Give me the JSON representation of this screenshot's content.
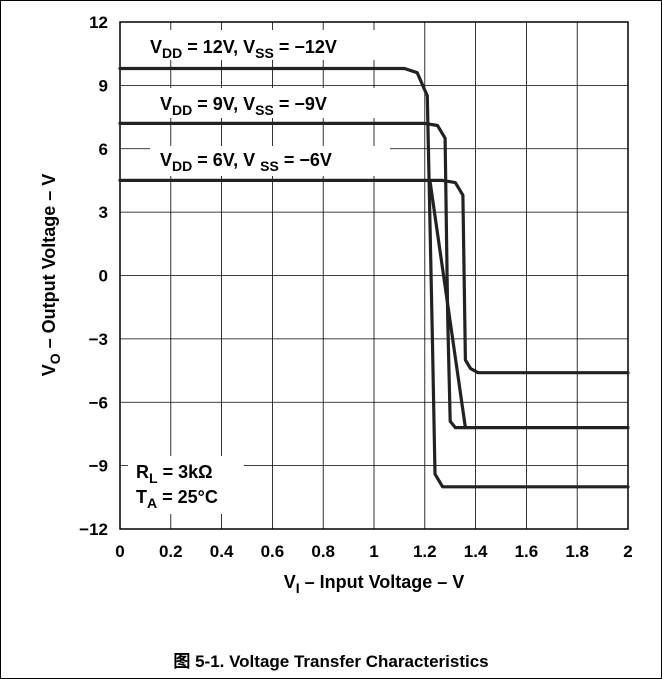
{
  "chart_data": {
    "type": "line",
    "title": "",
    "caption": "图 5-1. Voltage Transfer Characteristics",
    "xlabel": {
      "main": "V",
      "sub": "I",
      "rest": " – Input Voltage – V"
    },
    "ylabel": {
      "main": "V",
      "sub": "O",
      "rest": " – Output Voltage – V"
    },
    "xlim": [
      0,
      2
    ],
    "ylim": [
      -12,
      12
    ],
    "xticks": [
      0,
      0.2,
      0.4,
      0.6,
      0.8,
      1,
      1.2,
      1.4,
      1.6,
      1.8,
      2
    ],
    "xtick_labels": [
      "0",
      "0.2",
      "0.4",
      "0.6",
      "0.8",
      "1",
      "1.2",
      "1.4",
      "1.6",
      "1.8",
      "2"
    ],
    "yticks": [
      -12,
      -9,
      -6,
      -3,
      0,
      3,
      6,
      9,
      12
    ],
    "ytick_labels": [
      "−12",
      "−9",
      "−6",
      "−3",
      "0",
      "3",
      "6",
      "9",
      "12"
    ],
    "grid": true,
    "series": [
      {
        "name": "VDD = 12V, VSS = −12V",
        "x": [
          0,
          1.12,
          1.17,
          1.21,
          1.23,
          1.24,
          1.27,
          1.32,
          2
        ],
        "y": [
          9.8,
          9.8,
          9.6,
          8.5,
          -3.0,
          -9.4,
          -10.0,
          -10.0,
          -10.0
        ]
      },
      {
        "name": "VDD = 9V, VSS = −9V",
        "x": [
          0,
          1.2,
          1.25,
          1.28,
          1.29,
          1.3,
          1.32,
          1.4,
          2
        ],
        "y": [
          7.2,
          7.2,
          7.1,
          6.5,
          -2.0,
          -6.9,
          -7.2,
          -7.2,
          -7.2
        ]
      },
      {
        "name": "VDD = 6V, VSS = −6V",
        "x": [
          0,
          1.27,
          1.32,
          1.35,
          1.36,
          1.38,
          1.41,
          1.47,
          2
        ],
        "y": [
          4.5,
          4.5,
          4.4,
          3.8,
          -4.0,
          -4.4,
          -4.6,
          -4.6,
          -4.6
        ]
      },
      {
        "name": "",
        "x": [
          1.22,
          1.36
        ],
        "y": [
          4.5,
          -7.2
        ]
      }
    ],
    "annotations": [
      {
        "lines": [
          {
            "vdd": "V",
            "vdd_sub": "DD",
            "vdd_val": " = 12V,  V",
            "vss_sub": "SS",
            "vss_val": " = −12V"
          }
        ]
      },
      {
        "lines": [
          {
            "vdd": "V",
            "vdd_sub": "DD",
            "vdd_val": " = 9V,  V",
            "vss_sub": "SS",
            "vss_val": " = −9V"
          }
        ]
      },
      {
        "lines": [
          {
            "vdd": "V",
            "vdd_sub": "DD",
            "vdd_val": " = 6V, V ",
            "vss_sub": "SS",
            "vss_val": " = −6V"
          }
        ]
      }
    ],
    "conditions": [
      {
        "main": "R",
        "sub": "L",
        "rest": " = 3kΩ"
      },
      {
        "main": "T",
        "sub": "A",
        "rest": " = 25°C"
      }
    ]
  }
}
